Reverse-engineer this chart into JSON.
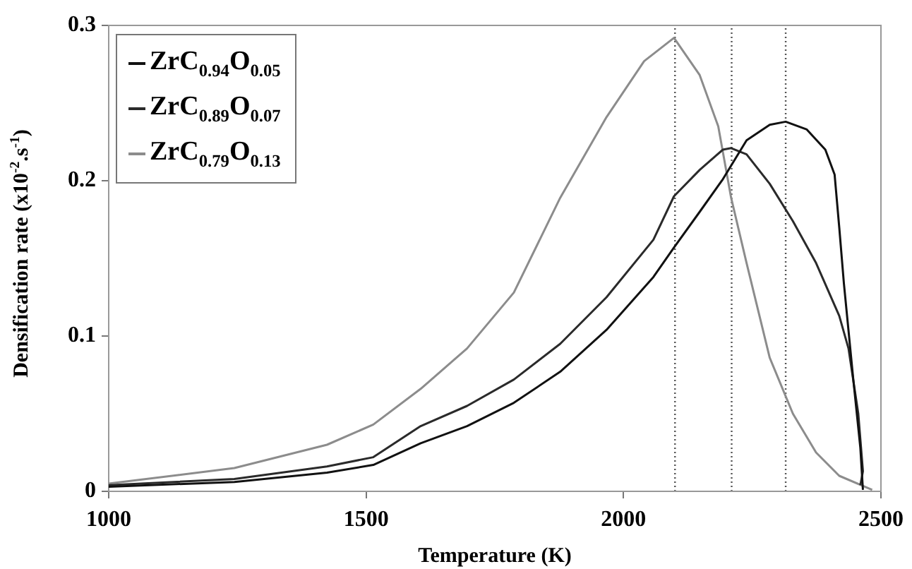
{
  "chart_data": {
    "type": "line",
    "xlabel": "Temperature (K)",
    "ylabel": "Densification rate (x10$^{-2}$.s$^{-1}$)",
    "xlim": [
      1000,
      2500
    ],
    "xticks": [
      1000,
      1500,
      2000,
      2500
    ],
    "ylim": [
      0,
      0.3
    ],
    "yticks": [
      0,
      0.1,
      0.2,
      0.3
    ],
    "grid": false,
    "legend": "top left",
    "marker": "none",
    "line_style": "solid",
    "series": [
      {
        "name": "ZrC$_{0.94}$O$_{0.05}$",
        "color": "#111111",
        "x": [
          1000,
          1244,
          1424,
          1514,
          1606,
          1696,
          1787,
          1877,
          1967,
          2058,
          2098,
          2148,
          2193,
          2239,
          2284,
          2315,
          2356,
          2392,
          2410,
          2419,
          2428,
          2446,
          2460,
          2465
        ],
        "values": [
          0.003,
          0.006,
          0.012,
          0.017,
          0.031,
          0.042,
          0.057,
          0.077,
          0.104,
          0.138,
          0.157,
          0.18,
          0.201,
          0.226,
          0.236,
          0.238,
          0.233,
          0.22,
          0.204,
          0.17,
          0.134,
          0.073,
          0.028,
          0.001
        ]
      },
      {
        "name": "ZrC$_{0.89}$O$_{0.07}$",
        "color": "#2a2a2a",
        "x": [
          1000,
          1244,
          1424,
          1514,
          1606,
          1696,
          1787,
          1877,
          1967,
          2058,
          2098,
          2148,
          2193,
          2209,
          2239,
          2284,
          2329,
          2374,
          2419,
          2437,
          2456,
          2465,
          2460
        ],
        "values": [
          0.004,
          0.008,
          0.016,
          0.022,
          0.042,
          0.055,
          0.072,
          0.095,
          0.125,
          0.162,
          0.19,
          0.207,
          0.22,
          0.221,
          0.217,
          0.198,
          0.174,
          0.147,
          0.113,
          0.092,
          0.05,
          0.013,
          0.004
        ]
      },
      {
        "name": "ZrC$_{0.79}$O$_{0.13}$",
        "color": "#8c8c8c",
        "x": [
          1000,
          1244,
          1424,
          1514,
          1606,
          1696,
          1787,
          1877,
          1967,
          2040,
          2098,
          2148,
          2184,
          2209,
          2239,
          2284,
          2329,
          2374,
          2419,
          2483
        ],
        "values": [
          0.005,
          0.015,
          0.03,
          0.043,
          0.066,
          0.092,
          0.128,
          0.189,
          0.241,
          0.277,
          0.292,
          0.268,
          0.235,
          0.189,
          0.147,
          0.086,
          0.05,
          0.025,
          0.01,
          0.001
        ]
      }
    ],
    "ref_lines": [
      {
        "axis": "x",
        "value": 2100,
        "color": "#555555",
        "line_style": "dotted"
      },
      {
        "axis": "x",
        "value": 2210,
        "color": "#555555",
        "line_style": "dotted"
      },
      {
        "axis": "x",
        "value": 2315,
        "color": "#555555",
        "line_style": "dotted"
      }
    ]
  }
}
